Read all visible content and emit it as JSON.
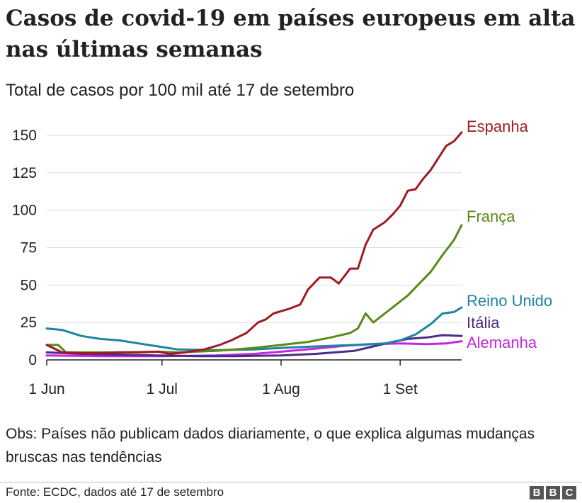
{
  "header": {
    "title": "Casos de covid-19 em países europeus em alta nas últimas semanas",
    "subtitle": "Total de casos por 100 mil até 17 de setembro"
  },
  "note": "Obs: Países não publicam dados diariamente, o que explica algumas mudanças bruscas nas tendências",
  "footer": {
    "source": "Fonte: ECDC, dados até 17 de setembro",
    "logo_letters": [
      "B",
      "B",
      "C"
    ]
  },
  "chart_data": {
    "type": "line",
    "x_unit": "date",
    "x_range": [
      "2020-06-01",
      "2020-09-17"
    ],
    "x_ticks": [
      {
        "date": "2020-06-01",
        "label": "1 Jun"
      },
      {
        "date": "2020-07-01",
        "label": "1 Jul"
      },
      {
        "date": "2020-08-01",
        "label": "1 Aug"
      },
      {
        "date": "2020-09-01",
        "label": "1 Set"
      }
    ],
    "ylim": [
      0,
      150
    ],
    "y_ticks": [
      0,
      25,
      50,
      75,
      100,
      125,
      150
    ],
    "grid": "horizontal",
    "legend": "direct labels at line ends",
    "series": [
      {
        "name": "Espanha",
        "color": "#a01a23",
        "points": [
          [
            "2020-06-01",
            10
          ],
          [
            "2020-06-05",
            5
          ],
          [
            "2020-06-10",
            4.5
          ],
          [
            "2020-06-15",
            4.5
          ],
          [
            "2020-06-20",
            5
          ],
          [
            "2020-06-25",
            5
          ],
          [
            "2020-06-30",
            5.5
          ],
          [
            "2020-07-03",
            4
          ],
          [
            "2020-07-07",
            5
          ],
          [
            "2020-07-12",
            7
          ],
          [
            "2020-07-16",
            10
          ],
          [
            "2020-07-19",
            13
          ],
          [
            "2020-07-23",
            18
          ],
          [
            "2020-07-26",
            25
          ],
          [
            "2020-07-28",
            27
          ],
          [
            "2020-07-30",
            31
          ],
          [
            "2020-08-03",
            34
          ],
          [
            "2020-08-06",
            37
          ],
          [
            "2020-08-08",
            47
          ],
          [
            "2020-08-11",
            55
          ],
          [
            "2020-08-14",
            55
          ],
          [
            "2020-08-16",
            51
          ],
          [
            "2020-08-19",
            61
          ],
          [
            "2020-08-21",
            61
          ],
          [
            "2020-08-23",
            77
          ],
          [
            "2020-08-25",
            87
          ],
          [
            "2020-08-28",
            92
          ],
          [
            "2020-08-30",
            97
          ],
          [
            "2020-09-01",
            103
          ],
          [
            "2020-09-03",
            113
          ],
          [
            "2020-09-05",
            114
          ],
          [
            "2020-09-07",
            121
          ],
          [
            "2020-09-09",
            127
          ],
          [
            "2020-09-11",
            135
          ],
          [
            "2020-09-13",
            143
          ],
          [
            "2020-09-15",
            146
          ],
          [
            "2020-09-17",
            152
          ]
        ]
      },
      {
        "name": "França",
        "color": "#588a16",
        "points": [
          [
            "2020-06-01",
            10
          ],
          [
            "2020-06-04",
            10
          ],
          [
            "2020-06-06",
            5
          ],
          [
            "2020-06-12",
            5
          ],
          [
            "2020-06-20",
            5
          ],
          [
            "2020-06-30",
            5.5
          ],
          [
            "2020-07-05",
            5
          ],
          [
            "2020-07-15",
            6
          ],
          [
            "2020-07-25",
            8
          ],
          [
            "2020-08-01",
            10
          ],
          [
            "2020-08-08",
            12
          ],
          [
            "2020-08-14",
            15
          ],
          [
            "2020-08-19",
            18
          ],
          [
            "2020-08-21",
            21
          ],
          [
            "2020-08-23",
            31
          ],
          [
            "2020-08-25",
            25
          ],
          [
            "2020-08-28",
            31
          ],
          [
            "2020-08-31",
            37
          ],
          [
            "2020-09-03",
            43
          ],
          [
            "2020-09-06",
            51
          ],
          [
            "2020-09-09",
            59
          ],
          [
            "2020-09-12",
            70
          ],
          [
            "2020-09-15",
            80
          ],
          [
            "2020-09-17",
            90
          ]
        ]
      },
      {
        "name": "Reino Unido",
        "color": "#1d84a1",
        "points": [
          [
            "2020-06-01",
            21
          ],
          [
            "2020-06-05",
            20
          ],
          [
            "2020-06-10",
            16
          ],
          [
            "2020-06-15",
            14
          ],
          [
            "2020-06-20",
            13
          ],
          [
            "2020-06-25",
            11
          ],
          [
            "2020-06-30",
            9
          ],
          [
            "2020-07-05",
            7
          ],
          [
            "2020-07-15",
            6.5
          ],
          [
            "2020-07-25",
            7
          ],
          [
            "2020-08-01",
            8
          ],
          [
            "2020-08-10",
            9
          ],
          [
            "2020-08-20",
            10
          ],
          [
            "2020-08-28",
            11
          ],
          [
            "2020-09-01",
            13
          ],
          [
            "2020-09-05",
            17
          ],
          [
            "2020-09-09",
            24
          ],
          [
            "2020-09-12",
            31
          ],
          [
            "2020-09-15",
            32
          ],
          [
            "2020-09-17",
            35
          ]
        ]
      },
      {
        "name": "Itália",
        "color": "#4b2d84",
        "points": [
          [
            "2020-06-01",
            5
          ],
          [
            "2020-06-10",
            4
          ],
          [
            "2020-06-20",
            3.5
          ],
          [
            "2020-06-30",
            3
          ],
          [
            "2020-07-10",
            2.5
          ],
          [
            "2020-07-20",
            2.5
          ],
          [
            "2020-08-01",
            3
          ],
          [
            "2020-08-10",
            4
          ],
          [
            "2020-08-20",
            6
          ],
          [
            "2020-08-25",
            9
          ],
          [
            "2020-08-30",
            12
          ],
          [
            "2020-09-03",
            14
          ],
          [
            "2020-09-08",
            15
          ],
          [
            "2020-09-12",
            16.5
          ],
          [
            "2020-09-17",
            16
          ]
        ]
      },
      {
        "name": "Alemanha",
        "color": "#c525e0",
        "points": [
          [
            "2020-06-01",
            3
          ],
          [
            "2020-06-15",
            2.5
          ],
          [
            "2020-07-01",
            2.5
          ],
          [
            "2020-07-15",
            3
          ],
          [
            "2020-07-25",
            4
          ],
          [
            "2020-08-01",
            5.5
          ],
          [
            "2020-08-10",
            7.5
          ],
          [
            "2020-08-18",
            9.5
          ],
          [
            "2020-08-25",
            10.5
          ],
          [
            "2020-09-01",
            11
          ],
          [
            "2020-09-08",
            10.5
          ],
          [
            "2020-09-13",
            11
          ],
          [
            "2020-09-17",
            12.5
          ]
        ]
      }
    ]
  }
}
